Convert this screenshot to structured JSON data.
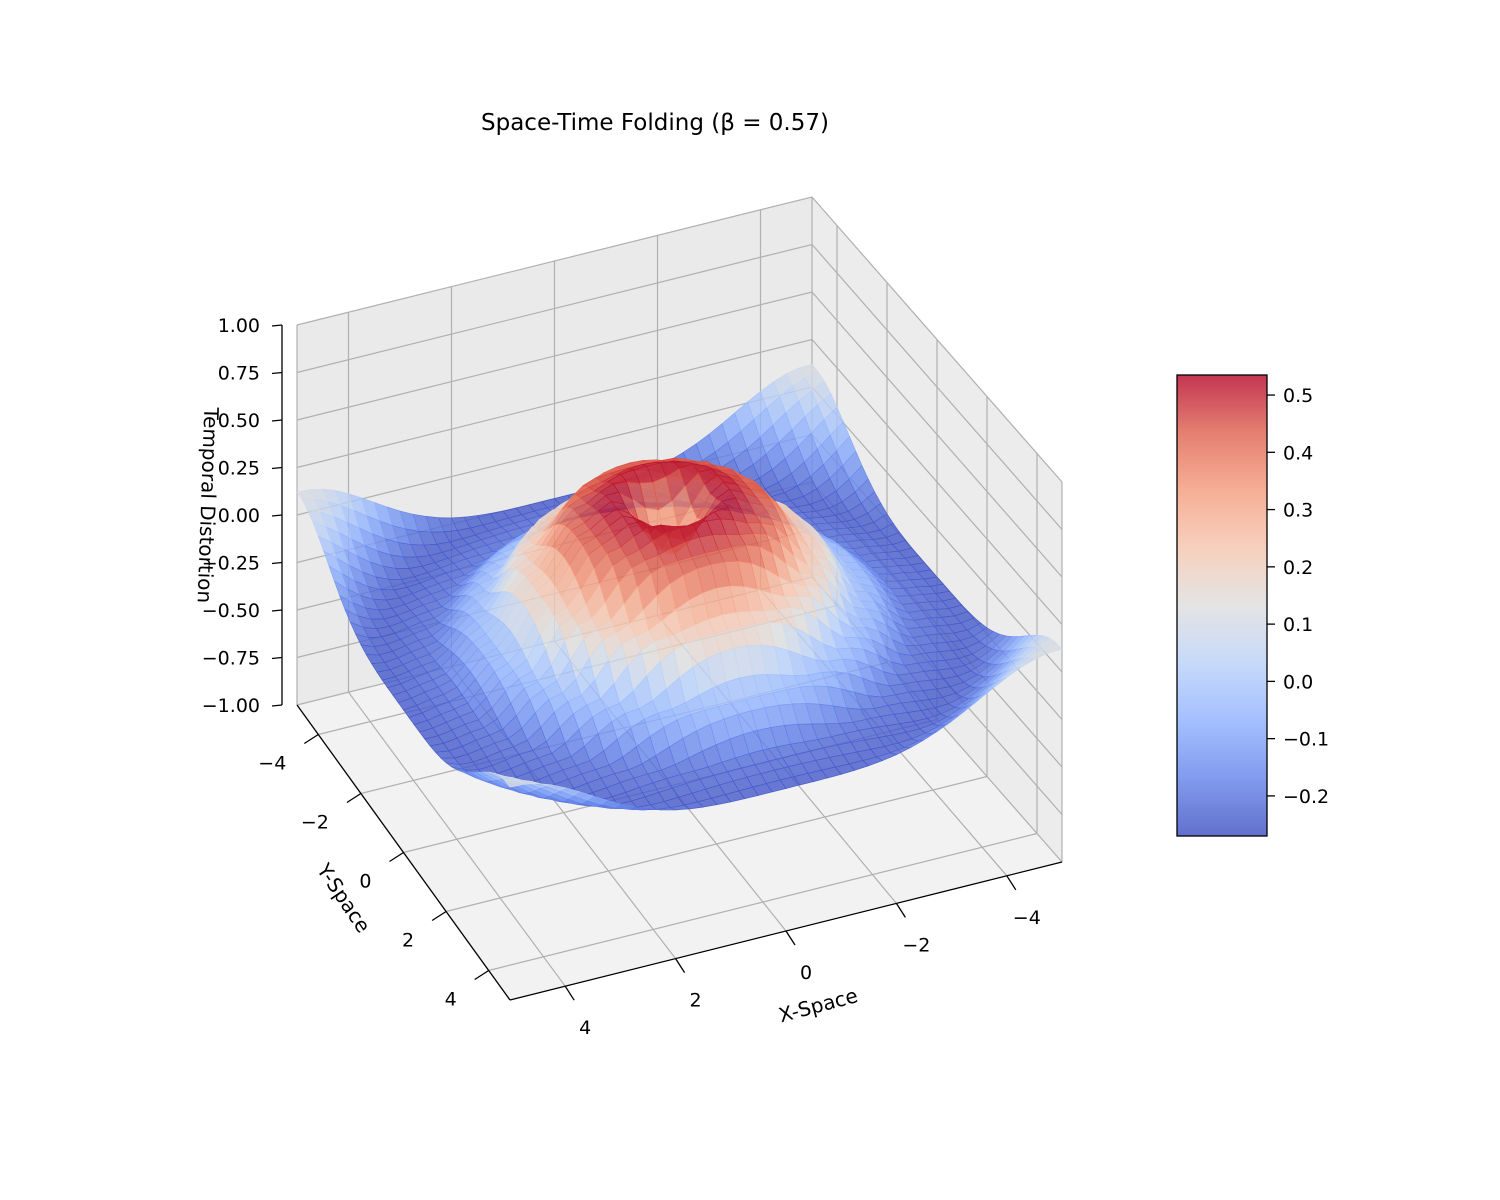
{
  "chart_data": {
    "type": "surface3d",
    "title": "Space-Time Folding (β = 0.57)",
    "xlabel": "X-Space",
    "ylabel": "Y-Space",
    "zlabel": "Temporal Distortion",
    "xlim": [
      -5,
      5
    ],
    "ylim": [
      -5,
      5
    ],
    "zlim": [
      -1,
      1
    ],
    "x_ticks": [
      -4,
      -2,
      0,
      2,
      4
    ],
    "x_tick_labels": [
      "−4",
      "−2",
      "0",
      "2",
      "4"
    ],
    "y_ticks": [
      -4,
      -2,
      0,
      2,
      4
    ],
    "y_tick_labels": [
      "−4",
      "−2",
      "0",
      "2",
      "4"
    ],
    "z_ticks": [
      -1.0,
      -0.75,
      -0.5,
      -0.25,
      0.0,
      0.25,
      0.5,
      0.75,
      1.0
    ],
    "z_tick_labels": [
      "−1.00",
      "−0.75",
      "−0.50",
      "−0.25",
      "0.00",
      "0.25",
      "0.50",
      "0.75",
      "1.00"
    ],
    "colormap": "coolwarm",
    "surface_alpha": 0.8,
    "surface": {
      "grid_x": [
        -5,
        5,
        50
      ],
      "grid_y": [
        -5,
        5,
        50
      ],
      "description_of_shape": [
        {
          "r": 0,
          "z": 0.22
        },
        {
          "r": 1,
          "z": 0.53
        },
        {
          "r": 1.6,
          "z": 0.45
        },
        {
          "r": 2.5,
          "z": 0.2
        },
        {
          "r": 3.3,
          "z": -0.05
        },
        {
          "r": 4.2,
          "z": -0.22
        },
        {
          "r": 5,
          "z": -0.25
        },
        {
          "r": 7,
          "z": 0.12
        }
      ]
    },
    "colorbar": {
      "range": [
        -0.27,
        0.535
      ],
      "ticks": [
        -0.2,
        -0.1,
        0.0,
        0.1,
        0.2,
        0.3,
        0.4,
        0.5
      ],
      "tick_labels": [
        "−0.2",
        "−0.1",
        "0.0",
        "0.1",
        "0.2",
        "0.3",
        "0.4",
        "0.5"
      ]
    },
    "grid": true,
    "pane_color": "#f2f2f2",
    "grid_color": "#b0b0b0"
  }
}
